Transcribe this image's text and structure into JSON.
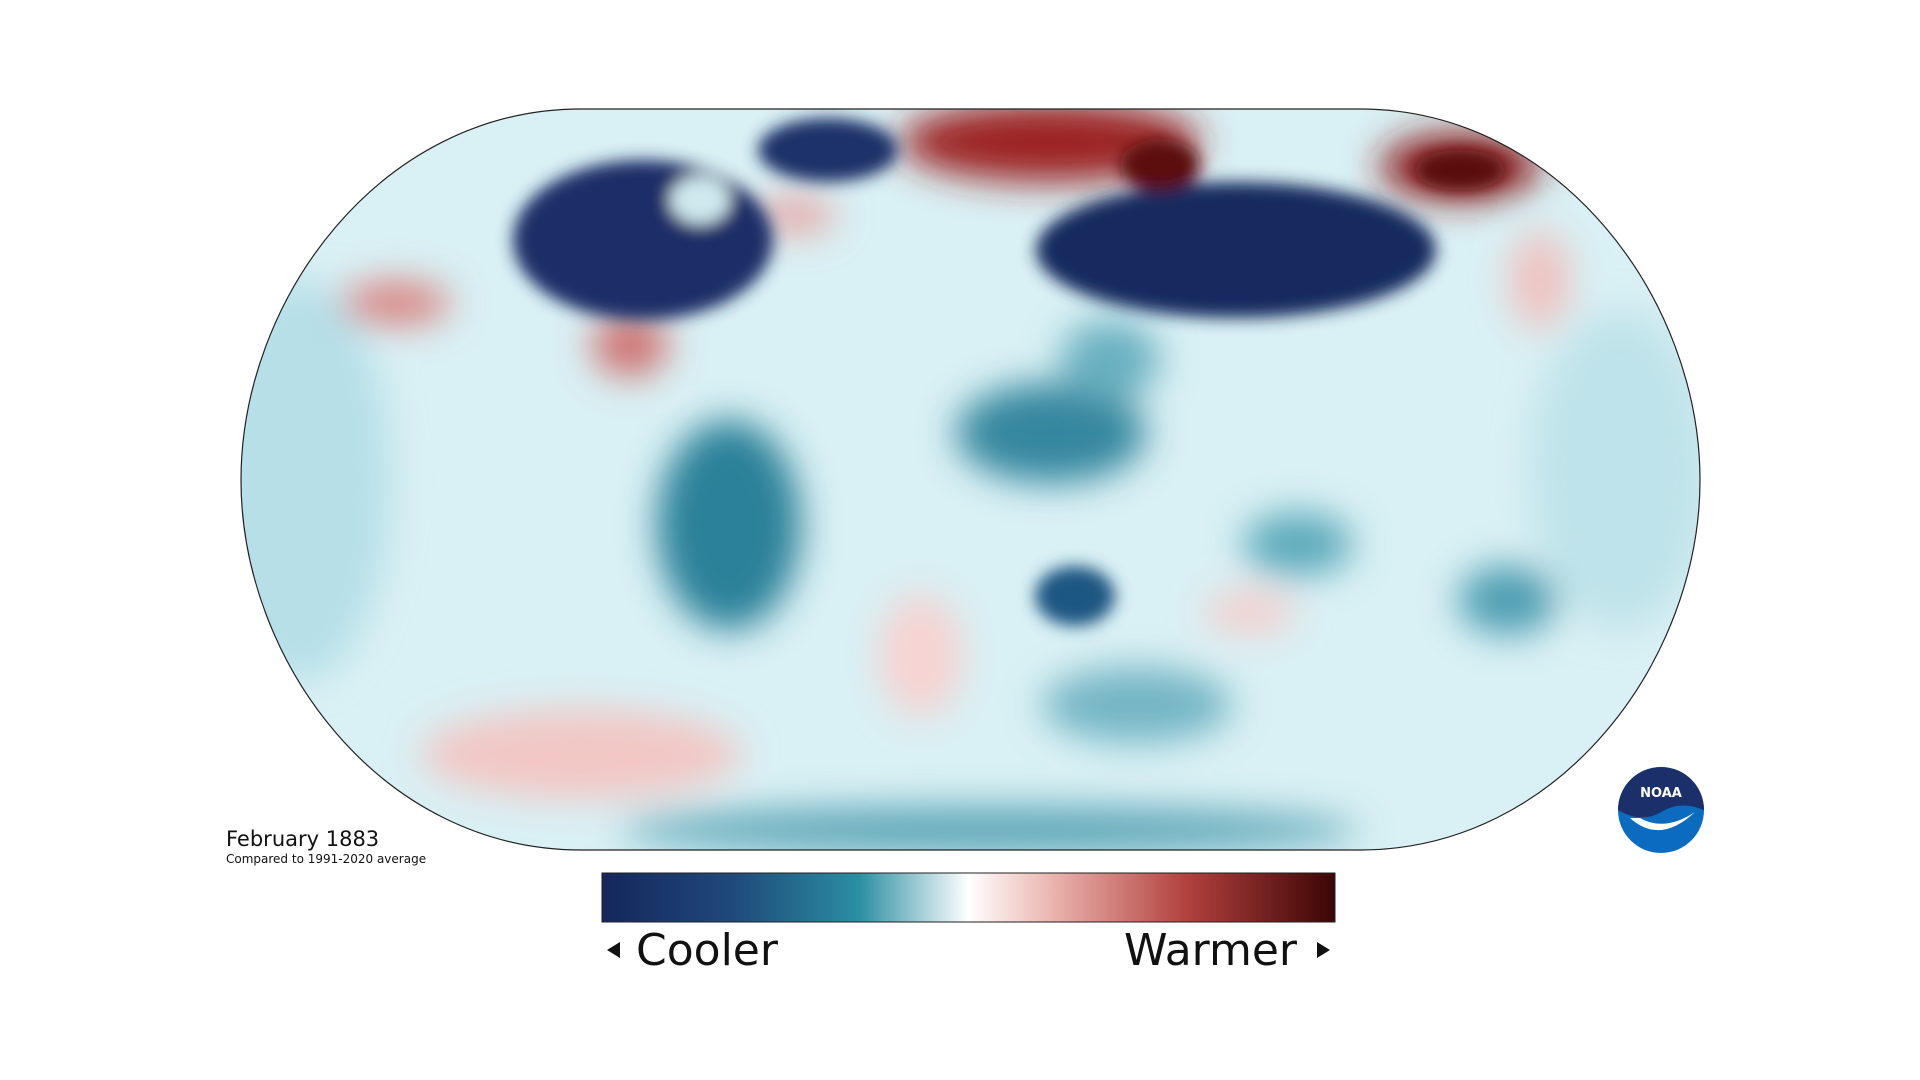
{
  "title": "February 1883",
  "subtitle": "Compared to 1991-2020 average",
  "legend": {
    "low": "Cooler",
    "high": "Warmer"
  },
  "logo": "NOAA"
}
